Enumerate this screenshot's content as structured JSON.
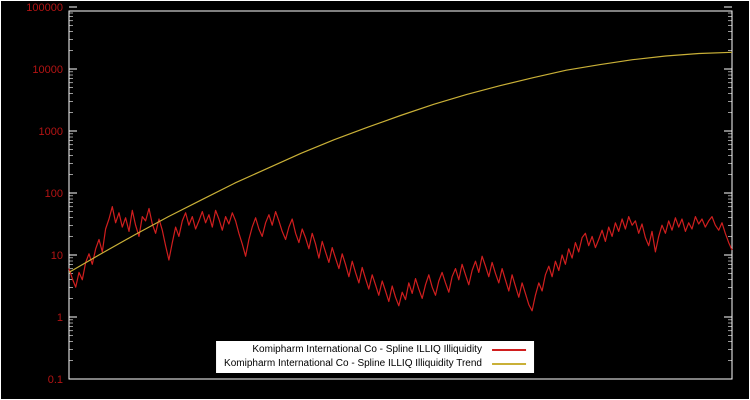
{
  "figure": {
    "background": "#000000",
    "frame_color": "#ffffff",
    "tick_label_color": "#b41414"
  },
  "chart_data": {
    "type": "line",
    "title": "",
    "xlabel": "",
    "ylabel": "",
    "x_axis": {
      "tick_labels_visible": false
    },
    "y_axis": {
      "scale": "log",
      "range_log10": [
        -1,
        5
      ],
      "ticks": [
        {
          "label": "100000",
          "log10": 5
        },
        {
          "label": "10000",
          "log10": 4
        },
        {
          "label": "1000",
          "log10": 3
        },
        {
          "label": "100",
          "log10": 2
        },
        {
          "label": "10",
          "log10": 1
        },
        {
          "label": "1",
          "log10": 0
        },
        {
          "label": "0.1",
          "log10": -1
        }
      ]
    },
    "legend": {
      "position": "bottom-center",
      "background": "#ffffff",
      "text_color": "#000000"
    },
    "series": [
      {
        "name": "Komipharm International Co - Spline ILLIQ Illiquidity",
        "color": "#d01e1e",
        "style": "noisy",
        "log10_values": [
          0.78,
          0.62,
          0.48,
          0.72,
          0.6,
          0.88,
          1.02,
          0.85,
          1.1,
          1.25,
          1.05,
          1.42,
          1.58,
          1.78,
          1.52,
          1.68,
          1.45,
          1.6,
          1.38,
          1.72,
          1.48,
          1.3,
          1.62,
          1.55,
          1.75,
          1.5,
          1.35,
          1.58,
          1.4,
          1.15,
          0.92,
          1.2,
          1.45,
          1.3,
          1.55,
          1.68,
          1.48,
          1.62,
          1.42,
          1.55,
          1.7,
          1.52,
          1.65,
          1.45,
          1.72,
          1.58,
          1.4,
          1.62,
          1.5,
          1.68,
          1.55,
          1.35,
          1.18,
          0.98,
          1.25,
          1.45,
          1.6,
          1.42,
          1.3,
          1.52,
          1.65,
          1.48,
          1.7,
          1.55,
          1.38,
          1.25,
          1.45,
          1.58,
          1.35,
          1.2,
          1.42,
          1.28,
          1.1,
          1.35,
          1.18,
          0.95,
          1.22,
          1.05,
          0.88,
          1.12,
          0.95,
          0.78,
          1.02,
          0.85,
          0.65,
          0.9,
          0.72,
          0.55,
          0.8,
          0.62,
          0.45,
          0.68,
          0.52,
          0.35,
          0.58,
          0.42,
          0.25,
          0.5,
          0.32,
          0.18,
          0.4,
          0.28,
          0.55,
          0.38,
          0.62,
          0.45,
          0.3,
          0.52,
          0.68,
          0.48,
          0.35,
          0.58,
          0.72,
          0.55,
          0.4,
          0.65,
          0.78,
          0.6,
          0.85,
          0.68,
          0.52,
          0.75,
          0.9,
          0.72,
          0.98,
          0.82,
          0.65,
          0.88,
          0.7,
          0.55,
          0.78,
          0.6,
          0.42,
          0.68,
          0.5,
          0.32,
          0.55,
          0.38,
          0.2,
          0.1,
          0.35,
          0.55,
          0.42,
          0.68,
          0.82,
          0.65,
          0.9,
          0.75,
          1.0,
          0.85,
          1.1,
          0.95,
          1.2,
          1.05,
          1.28,
          1.35,
          1.15,
          1.3,
          1.12,
          1.25,
          1.4,
          1.22,
          1.45,
          1.3,
          1.52,
          1.38,
          1.58,
          1.42,
          1.62,
          1.48,
          1.55,
          1.35,
          1.5,
          1.28,
          1.15,
          1.38,
          1.05,
          1.3,
          1.48,
          1.35,
          1.55,
          1.4,
          1.6,
          1.45,
          1.58,
          1.38,
          1.52,
          1.42,
          1.62,
          1.5,
          1.58,
          1.45,
          1.55,
          1.62,
          1.48,
          1.4,
          1.52,
          1.35,
          1.2,
          1.08
        ]
      },
      {
        "name": "Komipharm International Co - Spline ILLIQ Illiquidity Trend",
        "color": "#c9b037",
        "style": "smooth",
        "log10_values": [
          0.72,
          1.03,
          1.33,
          1.62,
          1.89,
          2.16,
          2.4,
          2.64,
          2.86,
          3.06,
          3.25,
          3.43,
          3.59,
          3.73,
          3.86,
          3.98,
          4.07,
          4.15,
          4.21,
          4.25,
          4.27
        ]
      }
    ]
  }
}
